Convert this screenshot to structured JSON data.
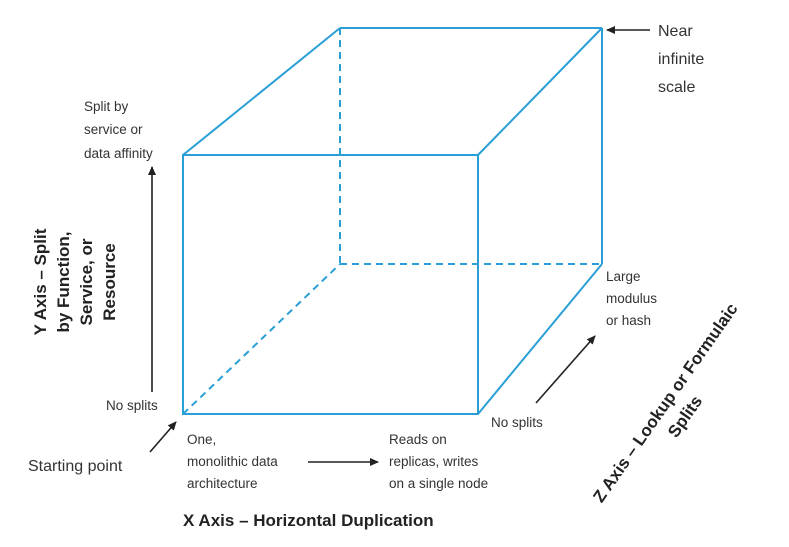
{
  "colors": {
    "cube_edge": "#2a9fd6",
    "text": "#333333",
    "arrow": "#222222"
  },
  "labels": {
    "near_infinite": [
      "Near",
      "infinite",
      "scale"
    ],
    "split_by_service": [
      "Split by",
      "service or",
      "data affinity"
    ],
    "y_axis_title": [
      "Y Axis – Split",
      "by Function,",
      "Service, or",
      "Resource"
    ],
    "large_modulus": [
      "Large",
      "modulus",
      "or hash"
    ],
    "no_splits_left": "No splits",
    "no_splits_right": "No splits",
    "starting_point": "Starting point",
    "monolithic": [
      "One,",
      "monolithic data",
      "architecture"
    ],
    "reads_replicas": [
      "Reads on",
      "replicas, writes",
      "on a single node"
    ],
    "x_axis_title": "X Axis – Horizontal Duplication",
    "z_axis_title": [
      "Z Axis – Lookup or Formulaic",
      "Splits"
    ]
  }
}
